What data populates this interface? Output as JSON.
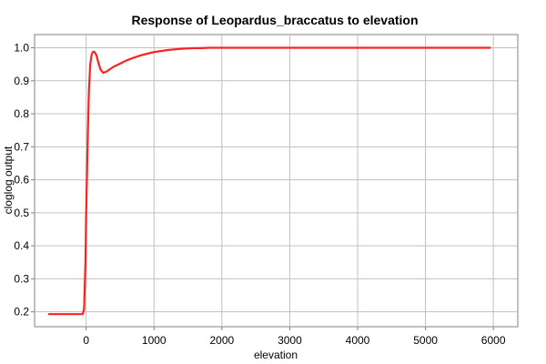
{
  "chart_data": {
    "type": "line",
    "title": "Response of Leopardus_braccatus to elevation",
    "xlabel": "elevation",
    "ylabel": "cloglog output",
    "xlim": [
      -760,
      6360
    ],
    "ylim": [
      0.155,
      1.04
    ],
    "xticks": [
      0,
      1000,
      2000,
      3000,
      4000,
      5000,
      6000
    ],
    "yticks": [
      0.2,
      0.3,
      0.4,
      0.5,
      0.6,
      0.7,
      0.8,
      0.9,
      1.0
    ],
    "ytick_labels": [
      "0.2",
      "0.3",
      "0.4",
      "0.5",
      "0.6",
      "0.7",
      "0.8",
      "0.9",
      "1.0"
    ],
    "grid": true,
    "series": [
      {
        "color": "#ff2020",
        "x": [
          -550,
          -380,
          -200,
          -50,
          -30,
          -10,
          0,
          20,
          40,
          60,
          80,
          100,
          120,
          150,
          180,
          210,
          250,
          300,
          350,
          400,
          500,
          600,
          700,
          800,
          900,
          1000,
          1100,
          1200,
          1300,
          1400,
          1500,
          1600,
          1700,
          1800,
          1900,
          2000,
          2500,
          3000,
          3500,
          4000,
          4500,
          5000,
          5500,
          5950
        ],
        "y": [
          0.193,
          0.193,
          0.193,
          0.193,
          0.21,
          0.35,
          0.5,
          0.7,
          0.87,
          0.95,
          0.978,
          0.988,
          0.988,
          0.978,
          0.955,
          0.935,
          0.924,
          0.928,
          0.935,
          0.942,
          0.952,
          0.962,
          0.97,
          0.977,
          0.982,
          0.987,
          0.99,
          0.993,
          0.995,
          0.997,
          0.998,
          0.999,
          0.999,
          1.0,
          1.0,
          1.0,
          1.0,
          1.0,
          1.0,
          1.0,
          1.0,
          1.0,
          1.0,
          1.0
        ]
      }
    ]
  }
}
